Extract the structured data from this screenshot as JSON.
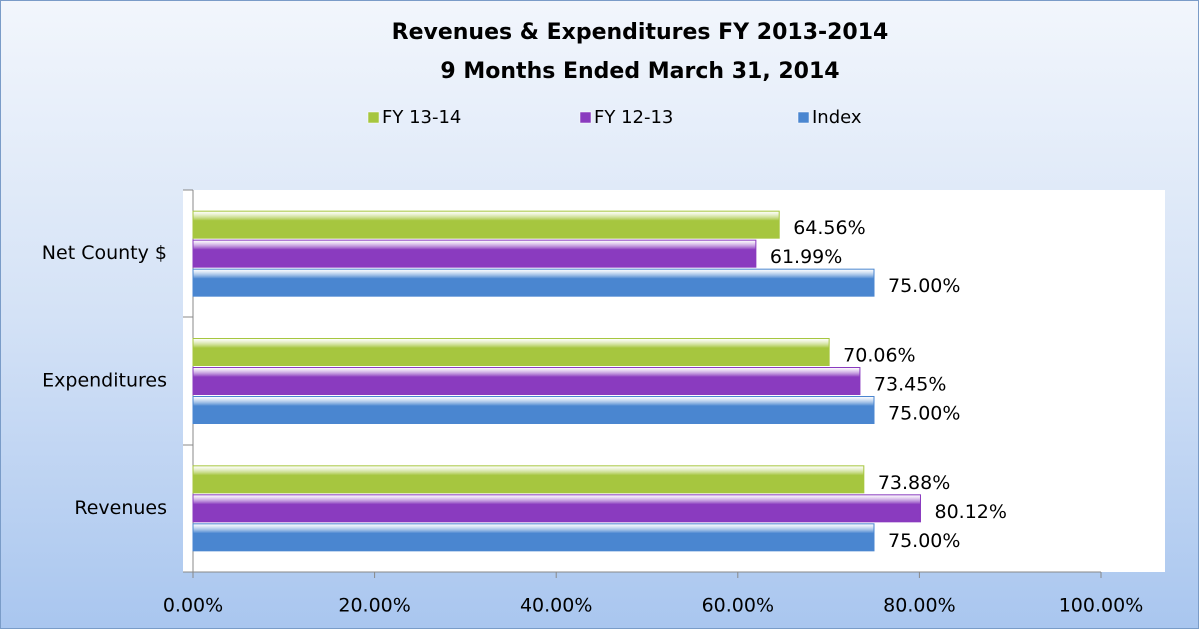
{
  "chart_data": {
    "type": "hbar",
    "title": "Revenues & Expenditures FY 2013-2014",
    "subtitle": "9 Months Ended March 31, 2014",
    "categories": [
      "Revenues",
      "Expenditures",
      "Net County $"
    ],
    "series": [
      {
        "name": "FY 13-14",
        "color": "#a6c63f",
        "values": [
          73.88,
          70.06,
          64.56
        ],
        "value_labels": [
          "73.88%",
          "70.06%",
          "64.56%"
        ]
      },
      {
        "name": "FY 12-13",
        "color": "#8a3bbf",
        "values": [
          80.12,
          73.45,
          61.99
        ],
        "value_labels": [
          "80.12%",
          "73.45%",
          "61.99%"
        ]
      },
      {
        "name": "Index",
        "color": "#4a86d0",
        "values": [
          75.0,
          75.0,
          75.0
        ],
        "value_labels": [
          "75.00%",
          "75.00%",
          "75.00%"
        ]
      }
    ],
    "xlim": [
      0,
      100
    ],
    "xticks": [
      {
        "value": 0,
        "label": "0.00%"
      },
      {
        "value": 20,
        "label": "20.00%"
      },
      {
        "value": 40,
        "label": "40.00%"
      },
      {
        "value": 60,
        "label": "60.00%"
      },
      {
        "value": 80,
        "label": "80.00%"
      },
      {
        "value": 100,
        "label": "100.00%"
      }
    ],
    "legend": "top"
  }
}
